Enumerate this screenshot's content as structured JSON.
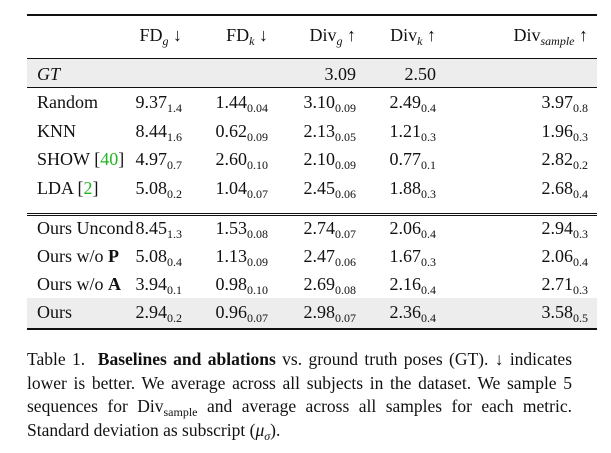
{
  "table": {
    "headers": [
      {
        "base": "FD",
        "sub": "g",
        "arrow": "↓"
      },
      {
        "base": "FD",
        "sub": "k",
        "arrow": "↓"
      },
      {
        "base": "Div",
        "sub": "g",
        "arrow": "↑"
      },
      {
        "base": "Div",
        "sub": "k",
        "arrow": "↑"
      },
      {
        "base": "Div",
        "sub": "sample",
        "arrow": "↑"
      }
    ],
    "gt_row": {
      "label": "GT",
      "div_g": "3.09",
      "div_k": "2.50"
    },
    "group1": [
      {
        "label": "Random",
        "cite": "",
        "cells": [
          [
            "9.37",
            "1.4"
          ],
          [
            "1.44",
            "0.04"
          ],
          [
            "3.10",
            "0.09"
          ],
          [
            "2.49",
            "0.4"
          ],
          [
            "3.97",
            "0.8"
          ]
        ]
      },
      {
        "label": "KNN",
        "cite": "",
        "cells": [
          [
            "8.44",
            "1.6"
          ],
          [
            "0.62",
            "0.09"
          ],
          [
            "2.13",
            "0.05"
          ],
          [
            "1.21",
            "0.3"
          ],
          [
            "1.96",
            "0.3"
          ]
        ]
      },
      {
        "label": "SHOW",
        "cite": "40",
        "cells": [
          [
            "4.97",
            "0.7"
          ],
          [
            "2.60",
            "0.10"
          ],
          [
            "2.10",
            "0.09"
          ],
          [
            "0.77",
            "0.1"
          ],
          [
            "2.82",
            "0.2"
          ]
        ]
      },
      {
        "label": "LDA",
        "cite": "2",
        "cells": [
          [
            "5.08",
            "0.2"
          ],
          [
            "1.04",
            "0.07"
          ],
          [
            "2.45",
            "0.06"
          ],
          [
            "1.88",
            "0.3"
          ],
          [
            "2.68",
            "0.4"
          ]
        ]
      }
    ],
    "group2": [
      {
        "label": "Ours Uncond",
        "bold_part": "",
        "cells": [
          [
            "8.45",
            "1.3"
          ],
          [
            "1.53",
            "0.08"
          ],
          [
            "2.74",
            "0.07"
          ],
          [
            "2.06",
            "0.4"
          ],
          [
            "2.94",
            "0.3"
          ]
        ]
      },
      {
        "label": "Ours w/o",
        "bold_part": "P",
        "cells": [
          [
            "5.08",
            "0.4"
          ],
          [
            "1.13",
            "0.09"
          ],
          [
            "2.47",
            "0.06"
          ],
          [
            "1.67",
            "0.3"
          ],
          [
            "2.06",
            "0.4"
          ]
        ]
      },
      {
        "label": "Ours w/o",
        "bold_part": "A",
        "cells": [
          [
            "3.94",
            "0.1"
          ],
          [
            "0.98",
            "0.10"
          ],
          [
            "2.69",
            "0.08"
          ],
          [
            "2.16",
            "0.4"
          ],
          [
            "2.71",
            "0.3"
          ]
        ]
      },
      {
        "label": "Ours",
        "bold_part": "",
        "cells": [
          [
            "2.94",
            "0.2"
          ],
          [
            "0.96",
            "0.07"
          ],
          [
            "2.98",
            "0.07"
          ],
          [
            "2.36",
            "0.4"
          ],
          [
            "3.58",
            "0.5"
          ]
        ]
      }
    ]
  },
  "caption": {
    "prefix": "Table 1.",
    "bold": "Baselines and ablations",
    "text1": " vs. ground truth poses (GT). ↓ indicates lower is better. We average across all subjects in the dataset. We sample 5 sequences for Div",
    "sample_sub": "sample",
    "text2": " and average across all samples for each metric. Standard deviation as subscript (",
    "mu": "μ",
    "sigma": "σ",
    "text3": ")."
  }
}
